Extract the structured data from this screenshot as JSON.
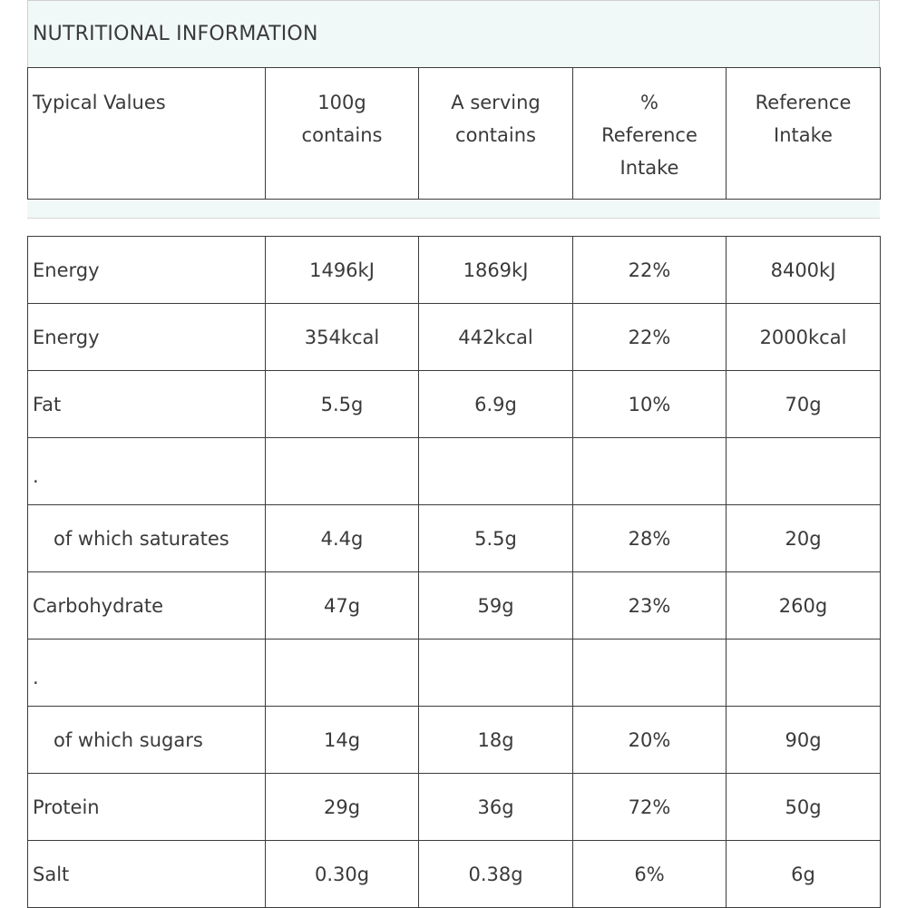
{
  "title": "NUTRITIONAL INFORMATION",
  "headers": {
    "typical": "Typical Values",
    "per100_l1": "100g",
    "per100_l2": "contains",
    "serving_l1": "A serving",
    "serving_l2": "contains",
    "pct_l1": "%",
    "pct_l2": "Reference",
    "pct_l3": "Intake",
    "ri_l1": "Reference",
    "ri_l2": "Intake"
  },
  "rows": [
    {
      "label": "Energy",
      "per100": "1496kJ",
      "serving": "1869kJ",
      "pct": "22%",
      "ri": "8400kJ"
    },
    {
      "label": "Energy",
      "per100": "354kcal",
      "serving": "442kcal",
      "pct": "22%",
      "ri": "2000kcal"
    },
    {
      "label": "Fat",
      "per100": "5.5g",
      "serving": "6.9g",
      "pct": "10%",
      "ri": "70g"
    },
    {
      "label": ".",
      "per100": "",
      "serving": "",
      "pct": "",
      "ri": ""
    },
    {
      "label": "of which saturates",
      "per100": "4.4g",
      "serving": "5.5g",
      "pct": "28%",
      "ri": "20g"
    },
    {
      "label": "Carbohydrate",
      "per100": "47g",
      "serving": "59g",
      "pct": "23%",
      "ri": "260g"
    },
    {
      "label": ".",
      "per100": "",
      "serving": "",
      "pct": "",
      "ri": ""
    },
    {
      "label": "of which sugars",
      "per100": "14g",
      "serving": "18g",
      "pct": "20%",
      "ri": "90g"
    },
    {
      "label": "Protein",
      "per100": "29g",
      "serving": "36g",
      "pct": "72%",
      "ri": "50g"
    },
    {
      "label": "Salt",
      "per100": "0.30g",
      "serving": "0.38g",
      "pct": "6%",
      "ri": "6g"
    }
  ]
}
